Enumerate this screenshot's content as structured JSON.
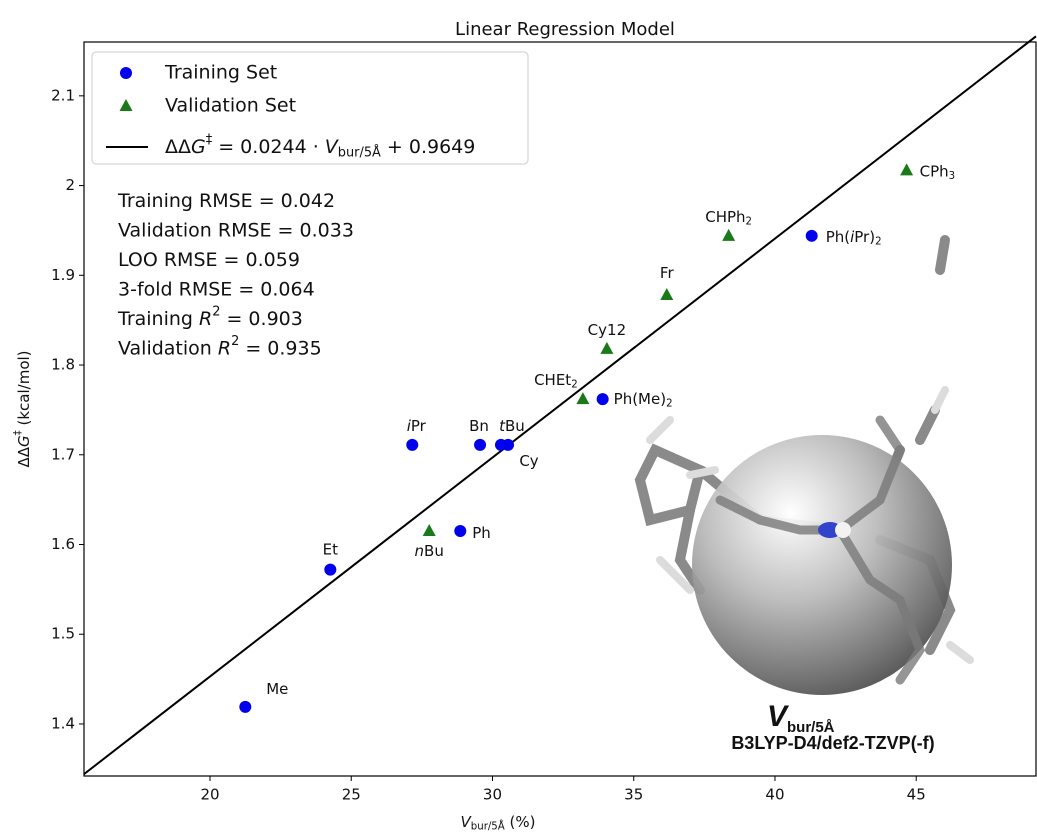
{
  "chart_data": {
    "type": "scatter",
    "title": "Linear Regression Model",
    "x_label": [
      [
        "V",
        "i"
      ],
      [
        "bur/5Å",
        "sub"
      ],
      [
        " (%)",
        "normal"
      ]
    ],
    "y_label": [
      [
        "ΔΔ",
        "normal"
      ],
      [
        "G",
        "i"
      ],
      [
        "‡",
        "sup"
      ],
      [
        " (kcal/mol)",
        "normal"
      ]
    ],
    "xlim": [
      15.54,
      49.24
    ],
    "ylim": [
      1.342,
      2.16
    ],
    "xticks": [
      20,
      25,
      30,
      35,
      40,
      45
    ],
    "yticks": [
      1.4,
      1.5,
      1.6,
      1.7,
      1.8,
      1.9,
      2.0,
      2.1
    ],
    "series": [
      {
        "name": "Training Set",
        "color": "#0000ee",
        "marker": "circle",
        "x": [
          21.25,
          24.26,
          27.16,
          29.56,
          30.3,
          30.55,
          28.86,
          33.9,
          41.3
        ],
        "values": [
          1.419,
          1.572,
          1.711,
          1.711,
          1.711,
          1.711,
          1.615,
          1.762,
          1.944
        ],
        "point_labels": [
          [
            [
              "Me",
              "normal"
            ]
          ],
          [
            [
              "Et",
              "normal"
            ]
          ],
          [
            [
              "i",
              "i"
            ],
            [
              "Pr",
              "normal"
            ]
          ],
          [
            [
              "Bn",
              "normal"
            ]
          ],
          [
            [
              "t",
              "i"
            ],
            [
              "Bu",
              "normal"
            ]
          ],
          [
            [
              "Cy",
              "normal"
            ]
          ],
          [
            [
              "Ph",
              "normal"
            ]
          ],
          [
            [
              "Ph(Me)",
              "normal"
            ],
            [
              "2",
              "sub"
            ]
          ],
          [
            [
              "Ph(",
              "normal"
            ],
            [
              "i",
              "i"
            ],
            [
              "Pr)",
              "normal"
            ],
            [
              "2",
              "sub"
            ]
          ]
        ]
      },
      {
        "name": "Validation Set",
        "color": "#1a7a1a",
        "marker": "triangle",
        "x": [
          27.76,
          33.2,
          34.05,
          36.17,
          38.36,
          44.66
        ],
        "values": [
          1.615,
          1.762,
          1.818,
          1.878,
          1.944,
          2.017
        ],
        "point_labels": [
          [
            [
              "n",
              "i"
            ],
            [
              "Bu",
              "normal"
            ]
          ],
          [
            [
              "CHEt",
              "normal"
            ],
            [
              "2",
              "sub"
            ]
          ],
          [
            [
              "Cy12",
              "normal"
            ]
          ],
          [
            [
              "Fr",
              "normal"
            ]
          ],
          [
            [
              "CHPh",
              "normal"
            ],
            [
              "2",
              "sub"
            ]
          ],
          [
            [
              "CPh",
              "normal"
            ],
            [
              "3",
              "sub"
            ]
          ]
        ]
      }
    ],
    "regression": {
      "name": [
        [
          "ΔΔ",
          "normal"
        ],
        [
          "G",
          "i"
        ],
        [
          "‡",
          "sup"
        ],
        [
          " = 0.0244 · ",
          "normal"
        ],
        [
          "V",
          "i"
        ],
        [
          "bur/5Å",
          "sub"
        ],
        [
          " + 0.9649",
          "normal"
        ]
      ],
      "slope": 0.0244,
      "intercept": 0.9649,
      "color": "#000000"
    },
    "annotations": [
      [
        [
          "Training RMSE = 0.042",
          "normal"
        ]
      ],
      [
        [
          "Validation RMSE  = 0.033",
          "normal"
        ]
      ],
      [
        [
          "LOO RMSE  = 0.059",
          "normal"
        ]
      ],
      [
        [
          "3-fold RMSE  = 0.064",
          "normal"
        ]
      ],
      [
        [
          "Training ",
          "normal"
        ],
        [
          "R",
          "i"
        ],
        [
          "2",
          "sup"
        ],
        [
          " = 0.903",
          "normal"
        ]
      ],
      [
        [
          "Validation ",
          "normal"
        ],
        [
          "R",
          "i"
        ],
        [
          "2",
          "sup"
        ],
        [
          " = 0.935",
          "normal"
        ]
      ]
    ],
    "caption": {
      "symbol": "V",
      "subscript": "bur/5Å",
      "method": "B3LYP-D4/def2-TZVP(-f)"
    }
  }
}
